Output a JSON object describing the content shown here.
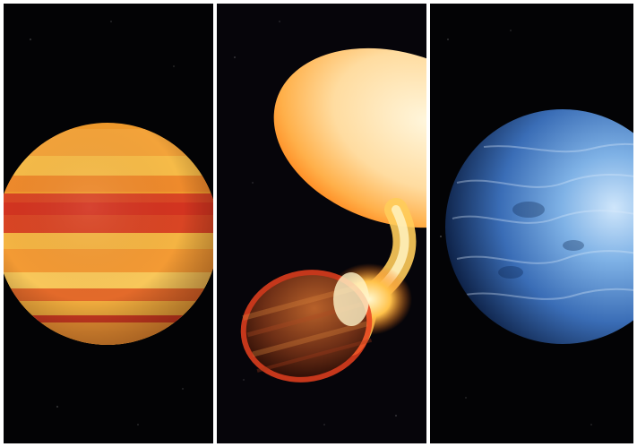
{
  "image": {
    "layout": "triptych",
    "background": "#ffffff",
    "panels": [
      {
        "subject": "banded-orange-gas-giant",
        "colors": {
          "light": "#f7c542",
          "mid": "#f08a2a",
          "band": "#d93c22",
          "space": "#030305"
        }
      },
      {
        "subject": "planet-being-consumed-by-star",
        "colors": {
          "star": "#fff0c8",
          "flare": "#ffb43a",
          "ring": "#e8411e",
          "planet": "#7a3a1c",
          "space": "#06050a"
        }
      },
      {
        "subject": "blue-cloudy-exoplanet",
        "colors": {
          "light": "#9cc8f0",
          "mid": "#3f7ac4",
          "dark": "#0e2752",
          "space": "#030305"
        }
      }
    ]
  }
}
